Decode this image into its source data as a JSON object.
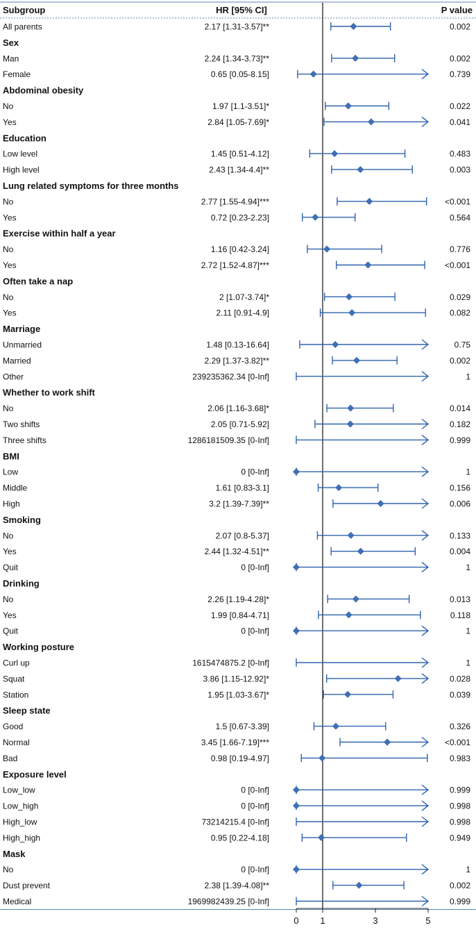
{
  "chart_data": {
    "type": "forest",
    "headers": {
      "subgroup": "Subgroup",
      "hr": "HR [95% CI]",
      "p": "P value"
    },
    "xaxis": {
      "range": [
        0,
        5
      ],
      "ticks": [
        0,
        1,
        3,
        5
      ],
      "reference_line": 1,
      "arrow_above": 5
    },
    "colors": {
      "marker": "#3f6fb5",
      "line": "#2f62ad",
      "rule": "#5b86b8",
      "reference": "#222222"
    },
    "rows": [
      {
        "kind": "data",
        "label": "All parents",
        "hr": 2.17,
        "lo": 1.31,
        "hi": 3.57,
        "hr_text": "2.17 [1.31-3.57]**",
        "p": "0.002"
      },
      {
        "kind": "group",
        "label": "Sex"
      },
      {
        "kind": "data",
        "label": "Man",
        "hr": 2.24,
        "lo": 1.34,
        "hi": 3.73,
        "hr_text": "2.24 [1.34-3.73]**",
        "p": "0.002"
      },
      {
        "kind": "data",
        "label": "Female",
        "hr": 0.65,
        "lo": 0.05,
        "hi": 8.15,
        "hr_text": "0.65 [0.05-8.15]",
        "p": "0.739"
      },
      {
        "kind": "group",
        "label": "Abdominal obesity"
      },
      {
        "kind": "data",
        "label": "No",
        "hr": 1.97,
        "lo": 1.1,
        "hi": 3.51,
        "hr_text": "1.97 [1.1-3.51]*",
        "p": "0.022"
      },
      {
        "kind": "data",
        "label": "Yes",
        "hr": 2.84,
        "lo": 1.05,
        "hi": 7.69,
        "hr_text": "2.84 [1.05-7.69]*",
        "p": "0.041"
      },
      {
        "kind": "group",
        "label": "Education"
      },
      {
        "kind": "data",
        "label": "Low level",
        "hr": 1.45,
        "lo": 0.51,
        "hi": 4.12,
        "hr_text": "1.45 [0.51-4.12]",
        "p": "0.483"
      },
      {
        "kind": "data",
        "label": "High level",
        "hr": 2.43,
        "lo": 1.34,
        "hi": 4.4,
        "hr_text": "2.43 [1.34-4.4]**",
        "p": "0.003"
      },
      {
        "kind": "group",
        "label": "Lung related symptoms for three months"
      },
      {
        "kind": "data",
        "label": "No",
        "hr": 2.77,
        "lo": 1.55,
        "hi": 4.94,
        "hr_text": "2.77 [1.55-4.94]***",
        "p": "<0.001"
      },
      {
        "kind": "data",
        "label": "Yes",
        "hr": 0.72,
        "lo": 0.23,
        "hi": 2.23,
        "hr_text": "0.72 [0.23-2.23]",
        "p": "0.564"
      },
      {
        "kind": "group",
        "label": "Exercise within half a year"
      },
      {
        "kind": "data",
        "label": "No",
        "hr": 1.16,
        "lo": 0.42,
        "hi": 3.24,
        "hr_text": "1.16 [0.42-3.24]",
        "p": "0.776"
      },
      {
        "kind": "data",
        "label": "Yes",
        "hr": 2.72,
        "lo": 1.52,
        "hi": 4.87,
        "hr_text": "2.72 [1.52-4.87]***",
        "p": "<0.001"
      },
      {
        "kind": "group",
        "label": "Often take a nap"
      },
      {
        "kind": "data",
        "label": "No",
        "hr": 2,
        "lo": 1.07,
        "hi": 3.74,
        "hr_text": "2 [1.07-3.74]*",
        "p": "0.029"
      },
      {
        "kind": "data",
        "label": "Yes",
        "hr": 2.11,
        "lo": 0.91,
        "hi": 4.9,
        "hr_text": "2.11 [0.91-4.9]",
        "p": "0.082"
      },
      {
        "kind": "group",
        "label": "Marriage"
      },
      {
        "kind": "data",
        "label": "Unmarried",
        "hr": 1.48,
        "lo": 0.13,
        "hi": 16.64,
        "hr_text": "1.48 [0.13-16.64]",
        "p": "0.75"
      },
      {
        "kind": "data",
        "label": "Married",
        "hr": 2.29,
        "lo": 1.37,
        "hi": 3.82,
        "hr_text": "2.29 [1.37-3.82]**",
        "p": "0.002"
      },
      {
        "kind": "data",
        "label": "Other",
        "hr": 239235362.34,
        "lo": 0,
        "hi": "Inf",
        "hr_text": "239235362.34 [0-Inf]",
        "p": "1"
      },
      {
        "kind": "group",
        "label": "Whether to work shift"
      },
      {
        "kind": "data",
        "label": "No",
        "hr": 2.06,
        "lo": 1.16,
        "hi": 3.68,
        "hr_text": "2.06 [1.16-3.68]*",
        "p": "0.014"
      },
      {
        "kind": "data",
        "label": "Two shifts",
        "hr": 2.05,
        "lo": 0.71,
        "hi": 5.92,
        "hr_text": "2.05 [0.71-5.92]",
        "p": "0.182"
      },
      {
        "kind": "data",
        "label": "Three shifts",
        "hr": 1286181509.35,
        "lo": 0,
        "hi": "Inf",
        "hr_text": "1286181509.35 [0-Inf]",
        "p": "0.999"
      },
      {
        "kind": "group",
        "label": "BMI"
      },
      {
        "kind": "data",
        "label": "Low",
        "hr": 0,
        "lo": 0,
        "hi": "Inf",
        "hr_text": "0 [0-Inf]",
        "p": "1"
      },
      {
        "kind": "data",
        "label": "Middle",
        "hr": 1.61,
        "lo": 0.83,
        "hi": 3.1,
        "hr_text": "1.61 [0.83-3.1]",
        "p": "0.156"
      },
      {
        "kind": "data",
        "label": "High",
        "hr": 3.2,
        "lo": 1.39,
        "hi": 7.39,
        "hr_text": "3.2 [1.39-7.39]**",
        "p": "0.006"
      },
      {
        "kind": "group",
        "label": "Smoking"
      },
      {
        "kind": "data",
        "label": "No",
        "hr": 2.07,
        "lo": 0.8,
        "hi": 5.37,
        "hr_text": "2.07 [0.8-5.37]",
        "p": "0.133"
      },
      {
        "kind": "data",
        "label": "Yes",
        "hr": 2.44,
        "lo": 1.32,
        "hi": 4.51,
        "hr_text": "2.44 [1.32-4.51]**",
        "p": "0.004"
      },
      {
        "kind": "data",
        "label": "Quit",
        "hr": 0,
        "lo": 0,
        "hi": "Inf",
        "hr_text": "0 [0-Inf]",
        "p": "1"
      },
      {
        "kind": "group",
        "label": "Drinking"
      },
      {
        "kind": "data",
        "label": "No",
        "hr": 2.26,
        "lo": 1.19,
        "hi": 4.28,
        "hr_text": "2.26 [1.19-4.28]*",
        "p": "0.013"
      },
      {
        "kind": "data",
        "label": "Yes",
        "hr": 1.99,
        "lo": 0.84,
        "hi": 4.71,
        "hr_text": "1.99 [0.84-4.71]",
        "p": "0.118"
      },
      {
        "kind": "data",
        "label": "Quit",
        "hr": 0,
        "lo": 0,
        "hi": "Inf",
        "hr_text": "0 [0-Inf]",
        "p": "1"
      },
      {
        "kind": "group",
        "label": "Working posture"
      },
      {
        "kind": "data",
        "label": "Curl up",
        "hr": 1615474875.2,
        "lo": 0,
        "hi": "Inf",
        "hr_text": "1615474875.2 [0-Inf]",
        "p": "1"
      },
      {
        "kind": "data",
        "label": "Squat",
        "hr": 3.86,
        "lo": 1.15,
        "hi": 12.92,
        "hr_text": "3.86 [1.15-12.92]*",
        "p": "0.028"
      },
      {
        "kind": "data",
        "label": "Station",
        "hr": 1.95,
        "lo": 1.03,
        "hi": 3.67,
        "hr_text": "1.95 [1.03-3.67]*",
        "p": "0.039"
      },
      {
        "kind": "group",
        "label": "Sleep state"
      },
      {
        "kind": "data",
        "label": "Good",
        "hr": 1.5,
        "lo": 0.67,
        "hi": 3.39,
        "hr_text": "1.5 [0.67-3.39]",
        "p": "0.326"
      },
      {
        "kind": "data",
        "label": "Normal",
        "hr": 3.45,
        "lo": 1.66,
        "hi": 7.19,
        "hr_text": "3.45 [1.66-7.19]***",
        "p": "<0.001"
      },
      {
        "kind": "data",
        "label": "Bad",
        "hr": 0.98,
        "lo": 0.19,
        "hi": 4.97,
        "hr_text": "0.98 [0.19-4.97]",
        "p": "0.983"
      },
      {
        "kind": "group",
        "label": "Exposure level"
      },
      {
        "kind": "data",
        "label": "Low_low",
        "hr": 0,
        "lo": 0,
        "hi": "Inf",
        "hr_text": "0 [0-Inf]",
        "p": "0.999"
      },
      {
        "kind": "data",
        "label": "Low_high",
        "hr": 0,
        "lo": 0,
        "hi": "Inf",
        "hr_text": "0 [0-Inf]",
        "p": "0.998"
      },
      {
        "kind": "data",
        "label": "High_low",
        "hr": 73214215.4,
        "lo": 0,
        "hi": "Inf",
        "hr_text": "73214215.4 [0-Inf]",
        "p": "0.998"
      },
      {
        "kind": "data",
        "label": "High_high",
        "hr": 0.95,
        "lo": 0.22,
        "hi": 4.18,
        "hr_text": "0.95 [0.22-4.18]",
        "p": "0.949"
      },
      {
        "kind": "group",
        "label": "Mask"
      },
      {
        "kind": "data",
        "label": "No",
        "hr": 0,
        "lo": 0,
        "hi": "Inf",
        "hr_text": "0 [0-Inf]",
        "p": "1"
      },
      {
        "kind": "data",
        "label": "Dust prevent",
        "hr": 2.38,
        "lo": 1.39,
        "hi": 4.08,
        "hr_text": "2.38 [1.39-4.08]**",
        "p": "0.002"
      },
      {
        "kind": "data",
        "label": "Medical",
        "hr": 1969982439.25,
        "lo": 0,
        "hi": "Inf",
        "hr_text": "1969982439.25 [0-Inf]",
        "p": "0.999"
      }
    ]
  }
}
